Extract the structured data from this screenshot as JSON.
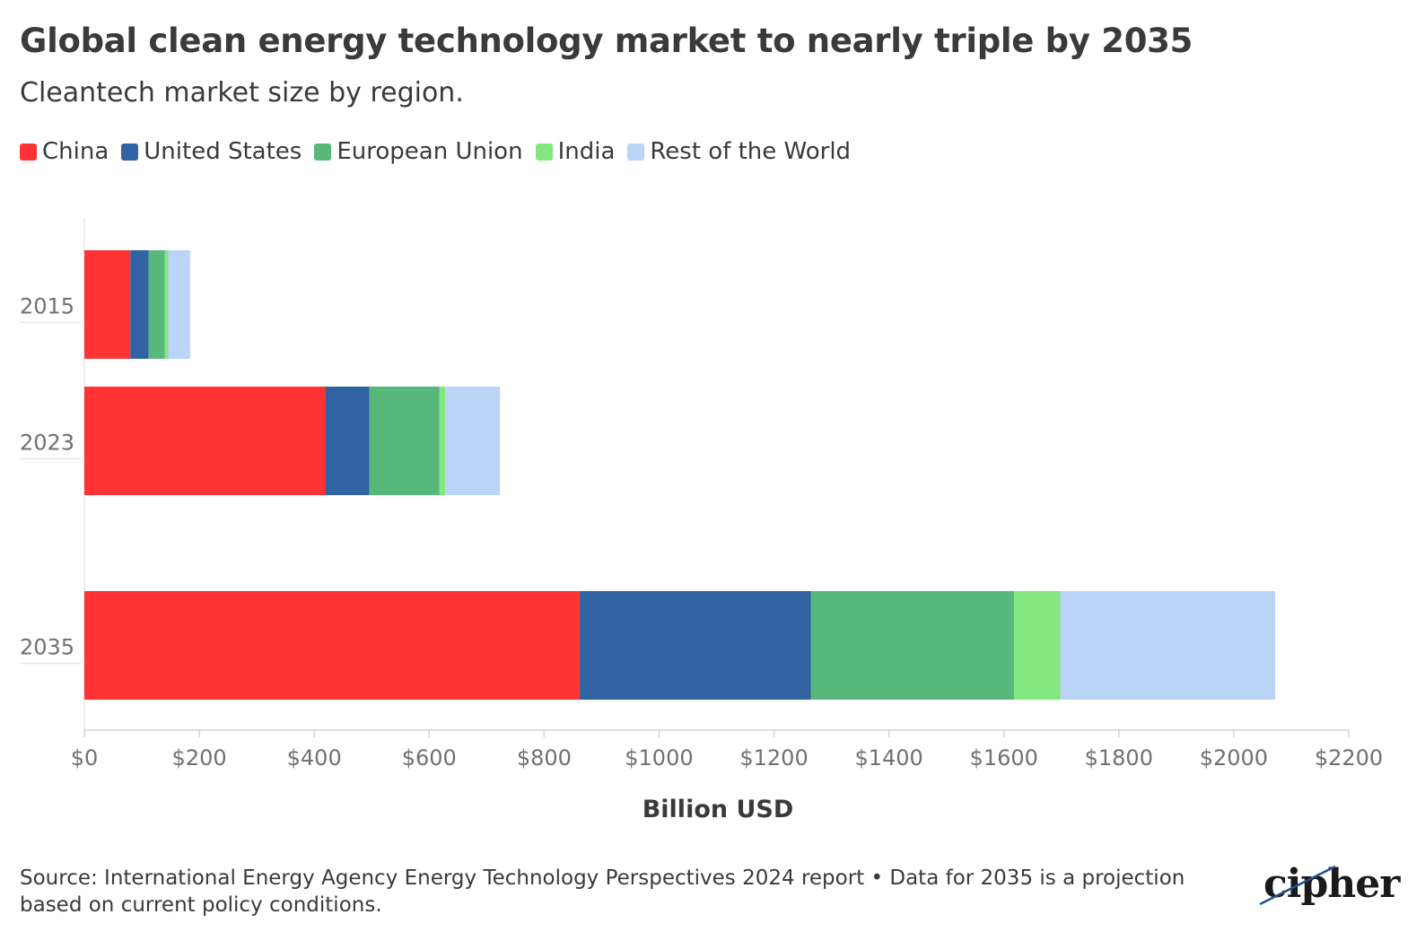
{
  "header": {
    "title": "Global clean energy technology market to nearly triple by 2035",
    "subtitle": "Cleantech market size by region."
  },
  "footer": {
    "source": "Source: International Energy Agency Energy Technology Perspectives 2024 report • Data for 2035 is a projection based on current policy conditions.",
    "logo_text": "cipher"
  },
  "chart_data": {
    "type": "bar",
    "orientation": "horizontal",
    "stacked": true,
    "categories": [
      "2015",
      "2023",
      "2035"
    ],
    "series": [
      {
        "name": "China",
        "color": "#ff3333",
        "values": [
          80,
          420,
          862
        ]
      },
      {
        "name": "United States",
        "color": "#3162a1",
        "values": [
          32,
          76,
          402
        ]
      },
      {
        "name": "European Union",
        "color": "#58b87b",
        "values": [
          28,
          122,
          354
        ]
      },
      {
        "name": "India",
        "color": "#83e67e",
        "values": [
          6,
          10,
          80
        ]
      },
      {
        "name": "Rest of the World",
        "color": "#bad4f8",
        "values": [
          38,
          95,
          374
        ]
      }
    ],
    "xlabel": "Billion USD",
    "ylabel": "",
    "xlim": [
      0,
      2200
    ],
    "xticks": [
      0,
      200,
      400,
      600,
      800,
      1000,
      1200,
      1400,
      1600,
      1800,
      2000,
      2200
    ],
    "xtick_labels": [
      "$0",
      "$200",
      "$400",
      "$600",
      "$800",
      "$1000",
      "$1200",
      "$1400",
      "$1600",
      "$1800",
      "$2000",
      "$2200"
    ],
    "grid": false,
    "legend_position": "top-left"
  }
}
